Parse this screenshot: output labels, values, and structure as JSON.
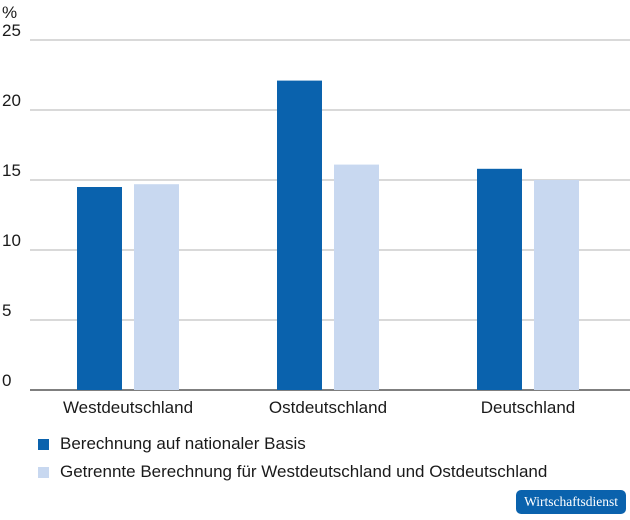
{
  "chart_data": {
    "type": "bar",
    "ylabel": "%",
    "ylim": [
      0,
      25
    ],
    "yticks": [
      0,
      5,
      10,
      15,
      20,
      25
    ],
    "grid": true,
    "categories": [
      "Westdeutschland",
      "Ostdeutschland",
      "Deutschland"
    ],
    "series": [
      {
        "name": "Berechnung auf nationaler Basis",
        "color": "#0a62ad",
        "values": [
          14.5,
          22.1,
          15.8
        ]
      },
      {
        "name": "Getrennte Berechnung für Westdeutschland und Ostdeutschland",
        "color": "#c8d8f0",
        "values": [
          14.7,
          16.1,
          15.0
        ]
      }
    ],
    "legend_position": "bottom-left"
  },
  "source_badge": "Wirtschaftsdienst"
}
